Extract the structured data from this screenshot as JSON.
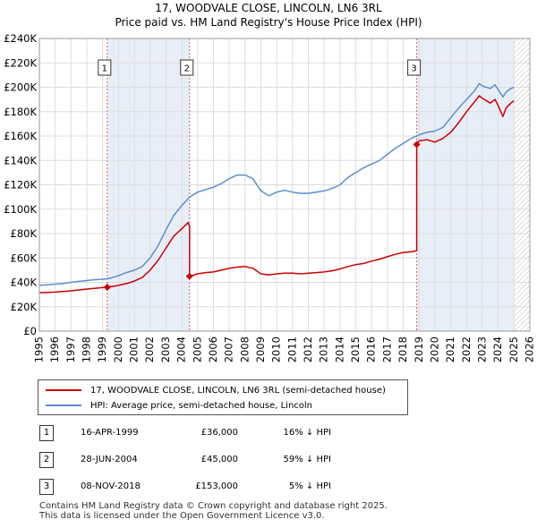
{
  "chart_data": {
    "type": "line",
    "title": "17, WOODVALE CLOSE, LINCOLN, LN6 3RL",
    "subtitle": "Price paid vs. HM Land Registry's House Price Index (HPI)",
    "xlabel": "",
    "ylabel": "",
    "xlim": [
      1995,
      2026
    ],
    "ylim": [
      0,
      240000
    ],
    "y_ticks": [
      0,
      20000,
      40000,
      60000,
      80000,
      100000,
      120000,
      140000,
      160000,
      180000,
      200000,
      220000,
      240000
    ],
    "y_tick_labels": [
      "£0",
      "£20K",
      "£40K",
      "£60K",
      "£80K",
      "£100K",
      "£120K",
      "£140K",
      "£160K",
      "£180K",
      "£200K",
      "£220K",
      "£240K"
    ],
    "x_ticks": [
      1995,
      1996,
      1997,
      1998,
      1999,
      2000,
      2001,
      2002,
      2003,
      2004,
      2005,
      2006,
      2007,
      2008,
      2009,
      2010,
      2011,
      2012,
      2013,
      2014,
      2015,
      2016,
      2017,
      2018,
      2019,
      2020,
      2021,
      2022,
      2023,
      2024,
      2025,
      2026
    ],
    "x_tick_labels": [
      "1995",
      "1996",
      "1997",
      "1998",
      "1999",
      "2000",
      "2001",
      "2002",
      "2003",
      "2004",
      "2005",
      "2006",
      "2007",
      "2008",
      "2009",
      "2010",
      "2011",
      "2012",
      "2013",
      "2014",
      "2015",
      "2016",
      "2017",
      "2018",
      "2019",
      "2020",
      "2021",
      "2022",
      "2023",
      "2024",
      "2025",
      "2026"
    ],
    "grid": true,
    "legend_position": "bottom",
    "series": [
      {
        "name": "17, WOODVALE CLOSE, LINCOLN, LN6 3RL (semi-detached house)",
        "color": "#cc0000",
        "points": [
          [
            1995.0,
            31500
          ],
          [
            1996.0,
            32000
          ],
          [
            1997.0,
            33000
          ],
          [
            1998.0,
            34500
          ],
          [
            1999.29,
            36000
          ],
          [
            1999.8,
            37000
          ],
          [
            2000.5,
            39000
          ],
          [
            2001.0,
            41000
          ],
          [
            2001.5,
            44000
          ],
          [
            2002.0,
            50000
          ],
          [
            2002.5,
            58000
          ],
          [
            2003.0,
            68000
          ],
          [
            2003.5,
            78000
          ],
          [
            2004.0,
            84000
          ],
          [
            2004.4,
            89000
          ],
          [
            2004.49,
            86000
          ],
          [
            2004.49,
            45000
          ],
          [
            2005.0,
            47000
          ],
          [
            2005.5,
            48000
          ],
          [
            2006.0,
            48500
          ],
          [
            2006.5,
            50000
          ],
          [
            2007.0,
            51500
          ],
          [
            2007.5,
            52500
          ],
          [
            2008.0,
            53000
          ],
          [
            2008.5,
            51500
          ],
          [
            2009.0,
            47000
          ],
          [
            2009.5,
            46000
          ],
          [
            2010.0,
            47000
          ],
          [
            2010.5,
            47500
          ],
          [
            2011.0,
            47500
          ],
          [
            2011.5,
            47000
          ],
          [
            2012.0,
            47500
          ],
          [
            2012.5,
            48000
          ],
          [
            2013.0,
            48500
          ],
          [
            2013.5,
            49500
          ],
          [
            2014.0,
            51000
          ],
          [
            2014.5,
            53000
          ],
          [
            2015.0,
            54500
          ],
          [
            2015.5,
            55500
          ],
          [
            2016.0,
            57500
          ],
          [
            2016.5,
            59000
          ],
          [
            2017.0,
            61000
          ],
          [
            2017.5,
            63000
          ],
          [
            2018.0,
            64500
          ],
          [
            2018.5,
            65000
          ],
          [
            2018.85,
            66000
          ],
          [
            2018.85,
            153000
          ],
          [
            2019.0,
            156000
          ],
          [
            2019.5,
            157000
          ],
          [
            2020.0,
            155000
          ],
          [
            2020.5,
            158000
          ],
          [
            2021.0,
            163000
          ],
          [
            2021.5,
            171000
          ],
          [
            2022.0,
            180000
          ],
          [
            2022.5,
            188000
          ],
          [
            2022.8,
            193000
          ],
          [
            2023.0,
            191000
          ],
          [
            2023.5,
            187000
          ],
          [
            2023.8,
            190000
          ],
          [
            2024.0,
            185000
          ],
          [
            2024.3,
            176000
          ],
          [
            2024.5,
            183000
          ],
          [
            2024.8,
            187000
          ],
          [
            2025.0,
            189000
          ]
        ]
      },
      {
        "name": "HPI: Average price, semi-detached house, Lincoln",
        "color": "#5b8fd0",
        "points": [
          [
            1995.0,
            37500
          ],
          [
            1995.5,
            38000
          ],
          [
            1996.0,
            38500
          ],
          [
            1996.5,
            39000
          ],
          [
            1997.0,
            40000
          ],
          [
            1997.5,
            40800
          ],
          [
            1998.0,
            41500
          ],
          [
            1998.5,
            42200
          ],
          [
            1999.0,
            42500
          ],
          [
            1999.5,
            43500
          ],
          [
            2000.0,
            45500
          ],
          [
            2000.5,
            48000
          ],
          [
            2001.0,
            50000
          ],
          [
            2001.5,
            53000
          ],
          [
            2002.0,
            60000
          ],
          [
            2002.5,
            70000
          ],
          [
            2003.0,
            83000
          ],
          [
            2003.5,
            95000
          ],
          [
            2004.0,
            103000
          ],
          [
            2004.5,
            110000
          ],
          [
            2005.0,
            114000
          ],
          [
            2005.5,
            116000
          ],
          [
            2006.0,
            118000
          ],
          [
            2006.5,
            121000
          ],
          [
            2007.0,
            125000
          ],
          [
            2007.5,
            128000
          ],
          [
            2008.0,
            128000
          ],
          [
            2008.5,
            125000
          ],
          [
            2009.0,
            115000
          ],
          [
            2009.5,
            111000
          ],
          [
            2010.0,
            114000
          ],
          [
            2010.5,
            115500
          ],
          [
            2011.0,
            114000
          ],
          [
            2011.5,
            113000
          ],
          [
            2012.0,
            113000
          ],
          [
            2012.5,
            114000
          ],
          [
            2013.0,
            115000
          ],
          [
            2013.5,
            117000
          ],
          [
            2014.0,
            120000
          ],
          [
            2014.5,
            126000
          ],
          [
            2015.0,
            130000
          ],
          [
            2015.5,
            134000
          ],
          [
            2016.0,
            137000
          ],
          [
            2016.5,
            140000
          ],
          [
            2017.0,
            145000
          ],
          [
            2017.5,
            150000
          ],
          [
            2018.0,
            154000
          ],
          [
            2018.5,
            158000
          ],
          [
            2019.0,
            161000
          ],
          [
            2019.5,
            163000
          ],
          [
            2020.0,
            164000
          ],
          [
            2020.5,
            167000
          ],
          [
            2021.0,
            175000
          ],
          [
            2021.5,
            183000
          ],
          [
            2022.0,
            190000
          ],
          [
            2022.5,
            197000
          ],
          [
            2022.8,
            203000
          ],
          [
            2023.0,
            201000
          ],
          [
            2023.5,
            199000
          ],
          [
            2023.8,
            202000
          ],
          [
            2024.0,
            198000
          ],
          [
            2024.3,
            192000
          ],
          [
            2024.5,
            196000
          ],
          [
            2024.8,
            199000
          ],
          [
            2025.0,
            200000
          ]
        ]
      }
    ],
    "sales": [
      {
        "marker": "1",
        "x": 1999.29,
        "price": 36000
      },
      {
        "marker": "2",
        "x": 2004.49,
        "price": 45000
      },
      {
        "marker": "3",
        "x": 2018.85,
        "price": 153000
      }
    ],
    "shaded_periods": [
      [
        1999.29,
        2004.49
      ],
      [
        2018.85,
        2025.0
      ]
    ],
    "hatched_from": 2025.0
  },
  "legend": {
    "property_label": "17, WOODVALE CLOSE, LINCOLN, LN6 3RL (semi-detached house)",
    "hpi_label": "HPI: Average price, semi-detached house, Lincoln"
  },
  "transactions": [
    {
      "marker": "1",
      "date": "16-APR-1999",
      "price": "£36,000",
      "hpi_diff": "16% ↓ HPI"
    },
    {
      "marker": "2",
      "date": "28-JUN-2004",
      "price": "£45,000",
      "hpi_diff": "59% ↓ HPI"
    },
    {
      "marker": "3",
      "date": "08-NOV-2018",
      "price": "£153,000",
      "hpi_diff": "5% ↓ HPI"
    }
  ],
  "footer": {
    "line1": "Contains HM Land Registry data © Crown copyright and database right 2025.",
    "line2": "This data is licensed under the Open Government Licence v3.0."
  },
  "colors": {
    "property_line": "#cc0000",
    "hpi_line": "#5b8fd0",
    "shade": "#e8eef8",
    "grid": "#dddddd"
  }
}
